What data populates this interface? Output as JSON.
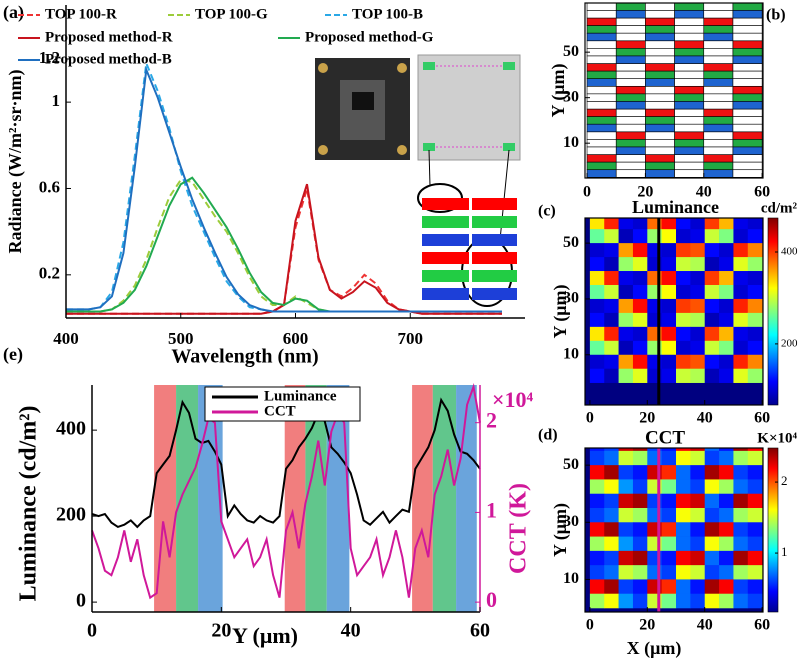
{
  "chart_data": [
    {
      "type": "line",
      "panel": "(a)",
      "xlabel": "Wavelength (nm)",
      "ylabel": "Radiance (W/m²·sr·nm)",
      "xlim": [
        400,
        800
      ],
      "ylim": [
        0,
        1.45
      ],
      "xticks": [
        400,
        500,
        600,
        700
      ],
      "yticks": [
        0.2,
        0.6,
        1.0,
        1.2
      ],
      "x": [
        400,
        410,
        420,
        430,
        440,
        450,
        460,
        470,
        480,
        490,
        500,
        510,
        520,
        530,
        540,
        550,
        560,
        570,
        580,
        590,
        600,
        610,
        620,
        630,
        640,
        650,
        660,
        670,
        680,
        690,
        700,
        710,
        720,
        730,
        740,
        750,
        760,
        770,
        780
      ],
      "series": [
        {
          "name": "TOP 100-R",
          "color": "#ee3333",
          "linestyle": "dashed",
          "values": [
            0.02,
            0.02,
            0.02,
            0.02,
            0.02,
            0.02,
            0.02,
            0.02,
            0.02,
            0.02,
            0.02,
            0.02,
            0.02,
            0.02,
            0.02,
            0.02,
            0.02,
            0.02,
            0.03,
            0.06,
            0.42,
            0.6,
            0.27,
            0.13,
            0.1,
            0.14,
            0.2,
            0.16,
            0.08,
            0.04,
            0.03,
            0.02,
            0.02,
            0.02,
            0.02,
            0.02,
            0.02,
            0.02,
            0.02
          ]
        },
        {
          "name": "TOP 100-G",
          "color": "#9ccc3a",
          "linestyle": "dashed",
          "values": [
            0.03,
            0.03,
            0.03,
            0.03,
            0.04,
            0.08,
            0.15,
            0.27,
            0.42,
            0.56,
            0.64,
            0.63,
            0.55,
            0.47,
            0.4,
            0.3,
            0.19,
            0.1,
            0.06,
            0.06,
            0.1,
            0.07,
            0.04,
            0.03,
            0.03,
            0.03,
            0.03,
            0.03,
            0.03,
            0.03,
            0.03,
            0.03,
            0.03,
            0.03,
            0.03,
            0.03,
            0.03,
            0.03,
            0.03
          ]
        },
        {
          "name": "TOP 100-B",
          "color": "#2aa8e6",
          "linestyle": "dashed",
          "values": [
            0.04,
            0.04,
            0.04,
            0.05,
            0.12,
            0.35,
            0.75,
            1.18,
            1.05,
            0.88,
            0.68,
            0.52,
            0.4,
            0.28,
            0.17,
            0.1,
            0.05,
            0.04,
            0.03,
            0.03,
            0.03,
            0.03,
            0.03,
            0.03,
            0.03,
            0.03,
            0.03,
            0.03,
            0.03,
            0.03,
            0.03,
            0.03,
            0.03,
            0.03,
            0.03,
            0.03,
            0.03,
            0.03,
            0.03
          ]
        },
        {
          "name": "Proposed method-R",
          "color": "#c8141e",
          "linestyle": "solid",
          "values": [
            0.02,
            0.02,
            0.02,
            0.02,
            0.02,
            0.02,
            0.02,
            0.02,
            0.02,
            0.02,
            0.02,
            0.02,
            0.02,
            0.02,
            0.02,
            0.02,
            0.02,
            0.02,
            0.03,
            0.06,
            0.45,
            0.62,
            0.28,
            0.13,
            0.09,
            0.12,
            0.17,
            0.14,
            0.07,
            0.04,
            0.03,
            0.02,
            0.02,
            0.02,
            0.02,
            0.02,
            0.02,
            0.02,
            0.02
          ]
        },
        {
          "name": "Proposed method-G",
          "color": "#22aa50",
          "linestyle": "solid",
          "values": [
            0.03,
            0.03,
            0.03,
            0.03,
            0.04,
            0.07,
            0.13,
            0.24,
            0.38,
            0.52,
            0.62,
            0.65,
            0.58,
            0.5,
            0.42,
            0.32,
            0.21,
            0.12,
            0.07,
            0.06,
            0.09,
            0.08,
            0.04,
            0.03,
            0.03,
            0.03,
            0.03,
            0.03,
            0.03,
            0.03,
            0.03,
            0.03,
            0.03,
            0.03,
            0.03,
            0.03,
            0.03,
            0.03,
            0.03
          ]
        },
        {
          "name": "Proposed method-B",
          "color": "#1f6fc0",
          "linestyle": "solid",
          "values": [
            0.04,
            0.04,
            0.04,
            0.05,
            0.1,
            0.3,
            0.7,
            1.15,
            1.02,
            0.86,
            0.7,
            0.55,
            0.42,
            0.3,
            0.19,
            0.11,
            0.06,
            0.04,
            0.03,
            0.03,
            0.03,
            0.03,
            0.03,
            0.03,
            0.03,
            0.03,
            0.03,
            0.03,
            0.03,
            0.03,
            0.03,
            0.03,
            0.03,
            0.03,
            0.03,
            0.03,
            0.03,
            0.03,
            0.03
          ]
        }
      ]
    },
    {
      "type": "pixel-map",
      "panel": "(b)",
      "ylabel": "Y (μm)",
      "xlim": [
        -0.7,
        60.3
      ],
      "ylim": [
        -5.3,
        71.6
      ],
      "xticks": [
        0,
        20,
        40,
        60
      ],
      "yticks": [
        10,
        30,
        50
      ],
      "subpixel_colors": [
        "#ee1111",
        "#22aa44",
        "#1e64d0"
      ]
    },
    {
      "type": "heatmap",
      "panel": "(c)",
      "title": "Luminance",
      "unit": "cd/m²",
      "ylabel": "Y (μm)",
      "xlim": [
        -1.7,
        60.3
      ],
      "ylim": [
        -8,
        59
      ],
      "xticks": [
        0,
        20,
        40,
        60
      ],
      "yticks": [
        10,
        30,
        50
      ],
      "clim": [
        67,
        474
      ],
      "cticks": [
        200,
        400
      ],
      "cut_x": 24,
      "cut_color": "#000000",
      "x": [
        2.5,
        7.5,
        12.5,
        17.5,
        22.5,
        27.5,
        32.5,
        37.5,
        42.5,
        47.5,
        52.5,
        57.5
      ],
      "y": [
        57.5,
        52.5,
        47.5,
        42.5,
        37.5,
        32.5,
        27.5,
        22.5,
        17.5,
        12.5,
        7.5,
        2.5
      ],
      "z": [
        [
          330,
          410,
          110,
          100,
          380,
          420,
          120,
          100,
          400,
          350,
          110,
          100
        ],
        [
          260,
          300,
          90,
          120,
          280,
          320,
          100,
          110,
          300,
          270,
          100,
          120
        ],
        [
          100,
          110,
          360,
          420,
          110,
          100,
          400,
          390,
          120,
          100,
          410,
          370
        ],
        [
          120,
          90,
          280,
          310,
          100,
          110,
          300,
          290,
          90,
          110,
          310,
          280
        ],
        [
          330,
          410,
          110,
          100,
          380,
          420,
          120,
          100,
          400,
          350,
          110,
          100
        ],
        [
          260,
          300,
          90,
          120,
          280,
          320,
          100,
          110,
          300,
          270,
          100,
          120
        ],
        [
          100,
          110,
          360,
          420,
          110,
          100,
          400,
          390,
          120,
          100,
          410,
          370
        ],
        [
          120,
          90,
          280,
          310,
          100,
          110,
          300,
          290,
          90,
          110,
          310,
          280
        ],
        [
          330,
          410,
          110,
          100,
          380,
          420,
          120,
          100,
          400,
          350,
          110,
          100
        ],
        [
          260,
          300,
          90,
          120,
          280,
          320,
          100,
          110,
          300,
          270,
          100,
          120
        ],
        [
          100,
          110,
          360,
          420,
          110,
          100,
          400,
          390,
          120,
          100,
          410,
          370
        ],
        [
          120,
          90,
          280,
          310,
          100,
          110,
          300,
          290,
          90,
          110,
          310,
          280
        ]
      ]
    },
    {
      "type": "heatmap",
      "panel": "(d)",
      "title": "CCT",
      "unit": "K×10⁴",
      "xlabel": "X (μm)",
      "ylabel": "Y (μm)",
      "xlim": [
        -1.7,
        60.3
      ],
      "ylim": [
        -1.4,
        56
      ],
      "xticks": [
        0,
        20,
        40,
        60
      ],
      "yticks": [
        10,
        30,
        50
      ],
      "clim": [
        0.17,
        2.48
      ],
      "cticks": [
        1,
        2
      ],
      "cut_x": 24,
      "cut_color": "#d0189a",
      "x": [
        2.5,
        7.5,
        12.5,
        17.5,
        22.5,
        27.5,
        32.5,
        37.5,
        42.5,
        47.5,
        52.5,
        57.5
      ],
      "y": [
        57.5,
        52.5,
        47.5,
        42.5,
        37.5,
        32.5,
        27.5,
        22.5,
        17.5,
        12.5,
        7.5,
        2.5
      ],
      "z": [
        [
          0.5,
          0.6,
          2.3,
          2.4,
          0.6,
          0.5,
          2.2,
          2.3,
          0.7,
          0.5,
          2.4,
          2.2
        ],
        [
          0.6,
          0.7,
          1.5,
          1.4,
          0.7,
          0.6,
          1.6,
          1.5,
          0.6,
          0.7,
          1.4,
          1.5
        ],
        [
          2.2,
          2.4,
          0.6,
          0.5,
          2.3,
          2.1,
          0.7,
          0.5,
          2.4,
          2.2,
          0.6,
          0.5
        ],
        [
          1.4,
          1.6,
          0.8,
          0.6,
          1.5,
          1.3,
          0.7,
          0.6,
          1.6,
          1.4,
          0.7,
          0.6
        ],
        [
          0.5,
          0.6,
          2.3,
          2.4,
          0.6,
          0.5,
          2.2,
          2.3,
          0.7,
          0.5,
          2.4,
          2.2
        ],
        [
          0.6,
          0.7,
          1.5,
          1.4,
          0.7,
          0.6,
          1.6,
          1.5,
          0.6,
          0.7,
          1.4,
          1.5
        ],
        [
          2.2,
          2.4,
          0.6,
          0.5,
          2.3,
          2.1,
          0.7,
          0.5,
          2.4,
          2.2,
          0.6,
          0.5
        ],
        [
          1.4,
          1.6,
          0.8,
          0.6,
          1.5,
          1.3,
          0.7,
          0.6,
          1.6,
          1.4,
          0.7,
          0.6
        ],
        [
          0.5,
          0.6,
          2.3,
          2.4,
          0.6,
          0.5,
          2.2,
          2.3,
          0.7,
          0.5,
          2.4,
          2.2
        ],
        [
          0.6,
          0.7,
          1.5,
          1.4,
          0.7,
          0.6,
          1.6,
          1.5,
          0.6,
          0.7,
          1.4,
          1.5
        ],
        [
          2.2,
          2.4,
          0.6,
          0.5,
          2.3,
          2.1,
          0.7,
          0.5,
          2.4,
          2.2,
          0.6,
          0.5
        ],
        [
          1.4,
          1.6,
          0.8,
          0.6,
          1.5,
          1.3,
          0.7,
          0.6,
          1.6,
          1.4,
          0.7,
          0.6
        ]
      ]
    },
    {
      "type": "line",
      "panel": "(e)",
      "xlabel": "Y (μm)",
      "ylabel": "Luminance (cd/m²)",
      "y2label": "CCT (K)",
      "y2_multiplier": "×10⁴",
      "xlim": [
        0,
        60
      ],
      "ylim": [
        -23,
        505
      ],
      "y2lim": [
        -0.11,
        2.42
      ],
      "xticks": [
        0,
        20,
        40,
        60
      ],
      "yticks": [
        0,
        200,
        400
      ],
      "y2ticks": [
        0,
        1,
        2
      ],
      "regions": [
        {
          "x": [
            9.6,
            13.0
          ],
          "color": "#f07070"
        },
        {
          "x": [
            13.0,
            16.4
          ],
          "color": "#50c080"
        },
        {
          "x": [
            16.4,
            20.2
          ],
          "color": "#5a9ad8"
        },
        {
          "x": [
            29.8,
            33.0
          ],
          "color": "#f07070"
        },
        {
          "x": [
            33.0,
            36.3
          ],
          "color": "#50c080"
        },
        {
          "x": [
            36.3,
            39.8
          ],
          "color": "#5a9ad8"
        },
        {
          "x": [
            49.5,
            52.7
          ],
          "color": "#f07070"
        },
        {
          "x": [
            52.7,
            56.3
          ],
          "color": "#50c080"
        },
        {
          "x": [
            56.3,
            59.5
          ],
          "color": "#5a9ad8"
        }
      ],
      "x": [
        0,
        1,
        2,
        3,
        4,
        5,
        6,
        7,
        8,
        9,
        10,
        11,
        12,
        13,
        14,
        15,
        16,
        17,
        18,
        19,
        20,
        21,
        22,
        23,
        24,
        25,
        26,
        27,
        28,
        29,
        30,
        31,
        32,
        33,
        34,
        35,
        36,
        37,
        38,
        39,
        40,
        41,
        42,
        43,
        44,
        45,
        46,
        47,
        48,
        49,
        50,
        51,
        52,
        53,
        54,
        55,
        56,
        57,
        58,
        59,
        60
      ],
      "series": [
        {
          "name": "Luminance",
          "color": "#000000",
          "axis": "y",
          "values": [
            205,
            200,
            205,
            185,
            175,
            180,
            190,
            175,
            190,
            200,
            300,
            320,
            340,
            400,
            465,
            440,
            380,
            370,
            375,
            350,
            320,
            200,
            225,
            205,
            190,
            185,
            200,
            190,
            185,
            200,
            310,
            330,
            360,
            380,
            405,
            440,
            420,
            360,
            345,
            325,
            300,
            250,
            190,
            180,
            195,
            210,
            185,
            200,
            215,
            210,
            310,
            335,
            360,
            400,
            470,
            445,
            390,
            350,
            345,
            330,
            310
          ]
        },
        {
          "name": "CCT",
          "color": "#d0189a",
          "axis": "y2",
          "values": [
            0.8,
            0.6,
            0.35,
            0.3,
            0.5,
            0.8,
            0.45,
            0.7,
            0.3,
            0.05,
            0.1,
            0.9,
            0.5,
            1.0,
            1.2,
            1.35,
            1.5,
            1.75,
            2.05,
            2.0,
            0.9,
            0.7,
            0.5,
            0.6,
            0.7,
            0.4,
            0.5,
            0.7,
            0.3,
            0.05,
            0.8,
            1.0,
            0.6,
            1.1,
            1.4,
            1.8,
            1.3,
            1.9,
            2.1,
            2.0,
            0.6,
            0.3,
            0.4,
            0.5,
            0.7,
            0.3,
            0.5,
            0.8,
            0.5,
            0.05,
            0.6,
            0.8,
            0.5,
            1.2,
            1.4,
            1.7,
            1.3,
            1.6,
            2.2,
            2.4,
            2.0
          ]
        }
      ]
    }
  ]
}
